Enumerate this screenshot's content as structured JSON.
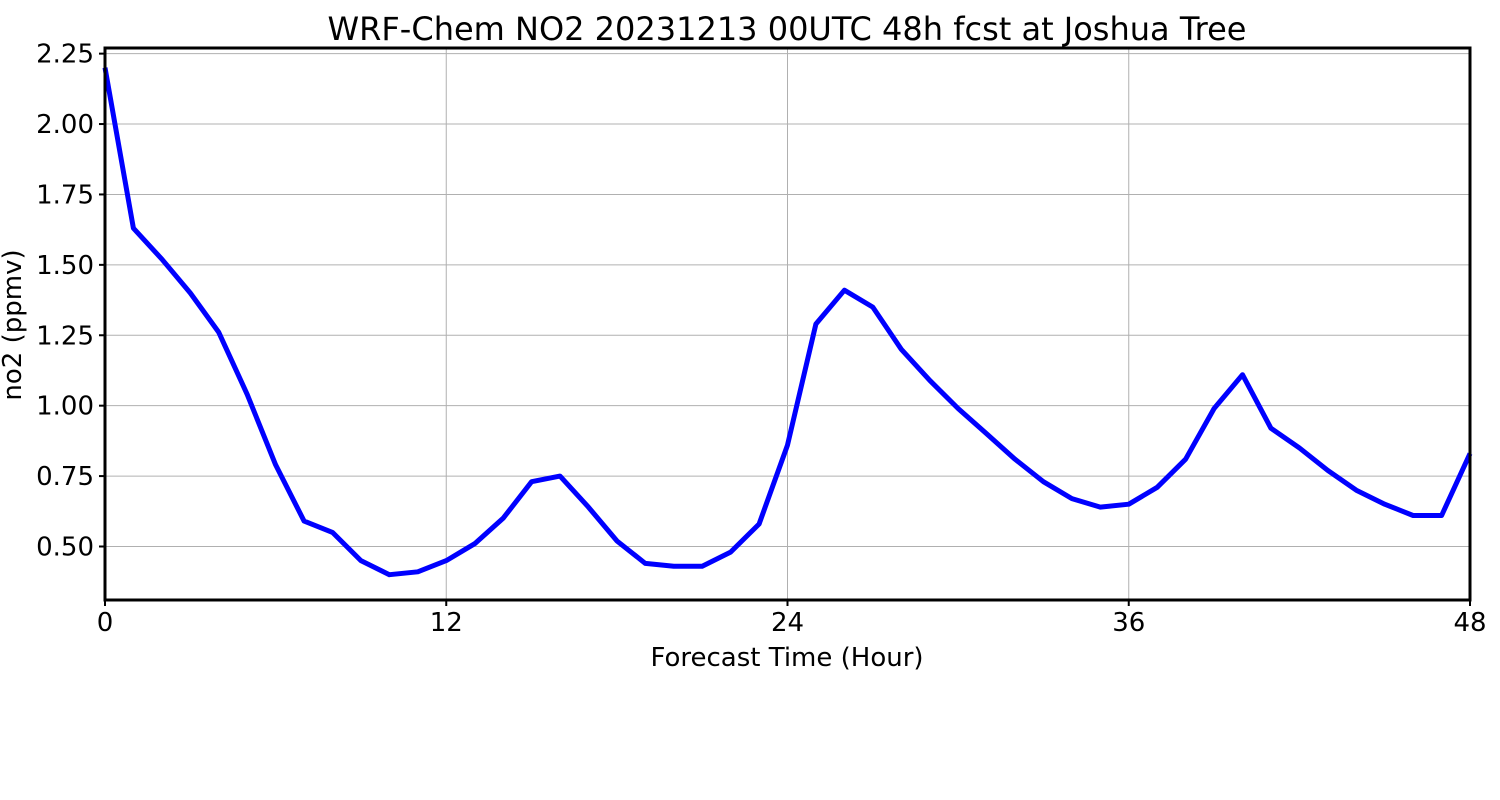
{
  "chart_data": {
    "type": "line",
    "title": "WRF-Chem NO2  20231213 00UTC 48h fcst at Joshua Tree",
    "xlabel": "Forecast Time (Hour)",
    "ylabel": "no2  (ppmv)",
    "xlim": [
      0,
      48
    ],
    "ylim": [
      0.31,
      2.27
    ],
    "xticks": [
      0,
      12,
      24,
      36,
      48
    ],
    "yticks": [
      0.5,
      0.75,
      1.0,
      1.25,
      1.5,
      1.75,
      2.0,
      2.25
    ],
    "xtick_labels": [
      "0",
      "12",
      "24",
      "36",
      "48"
    ],
    "ytick_labels": [
      "0.50",
      "0.75",
      "1.00",
      "1.25",
      "1.50",
      "1.75",
      "2.00",
      "2.25"
    ],
    "grid": true,
    "line_color": "#0000ff",
    "series": [
      {
        "x": [
          0,
          1,
          2,
          3,
          4,
          5,
          6,
          7,
          8,
          9,
          10,
          11,
          12,
          13,
          14,
          15,
          16,
          17,
          18,
          19,
          20,
          21,
          22,
          23,
          24,
          25,
          26,
          27,
          28,
          29,
          30,
          31,
          32,
          33,
          34,
          35,
          36,
          37,
          38,
          39,
          40,
          41,
          42,
          43,
          44,
          45,
          46,
          47,
          48
        ],
        "values": [
          2.2,
          1.63,
          1.52,
          1.4,
          1.26,
          1.04,
          0.79,
          0.59,
          0.55,
          0.45,
          0.4,
          0.41,
          0.45,
          0.51,
          0.6,
          0.73,
          0.75,
          0.64,
          0.52,
          0.44,
          0.43,
          0.43,
          0.48,
          0.58,
          0.86,
          1.29,
          1.41,
          1.35,
          1.2,
          1.09,
          0.99,
          0.9,
          0.81,
          0.73,
          0.67,
          0.64,
          0.65,
          0.71,
          0.81,
          0.99,
          1.11,
          0.92,
          0.85,
          0.77,
          0.7,
          0.65,
          0.61,
          0.61,
          0.83
        ]
      }
    ]
  }
}
